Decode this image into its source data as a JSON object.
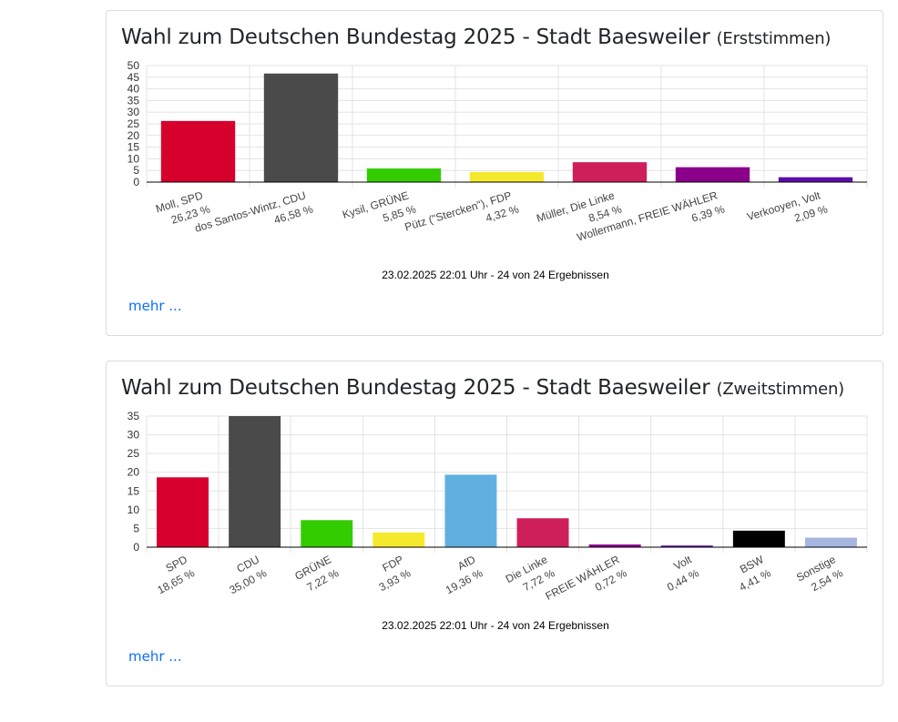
{
  "cards": [
    {
      "title": "Wahl zum Deutschen Bundestag 2025 - Stadt Baesweiler",
      "subtitle": "(Erststimmen)",
      "stand": "23.02.2025 22:01 Uhr - 24 von 24 Ergebnissen",
      "more": "mehr ..."
    },
    {
      "title": "Wahl zum Deutschen Bundestag 2025 - Stadt Baesweiler",
      "subtitle": "(Zweitstimmen)",
      "stand": "23.02.2025 22:01 Uhr - 24 von 24 Ergebnissen",
      "more": "mehr ..."
    }
  ],
  "chart_data": [
    {
      "type": "bar",
      "ylim": [
        0,
        50
      ],
      "yticks": [
        0,
        5,
        10,
        15,
        20,
        25,
        30,
        35,
        40,
        45,
        50
      ],
      "grid": true,
      "legend": "none",
      "categories": [
        "Moll, SPD",
        "dos Santos-Wintz, CDU",
        "Kysil, GRÜNE",
        "Pütz (\"Stercken\"), FDP",
        "Müller, Die Linke",
        "Wollermann, FREIE WÄHLER",
        "Verkooyen, Volt"
      ],
      "values": [
        26.23,
        46.58,
        5.85,
        4.32,
        8.54,
        6.39,
        2.09
      ],
      "value_labels": [
        "26,23 %",
        "46,58 %",
        "5,85 %",
        "4,32 %",
        "8,54 %",
        "6,39 %",
        "2,09 %"
      ],
      "colors": [
        "#d7002c",
        "#4a4a4a",
        "#33cc00",
        "#f5e92e",
        "#cf1f5a",
        "#8a008a",
        "#5c0ea8"
      ]
    },
    {
      "type": "bar",
      "ylim": [
        0,
        35
      ],
      "yticks": [
        0,
        5,
        10,
        15,
        20,
        25,
        30,
        35
      ],
      "grid": true,
      "legend": "none",
      "categories": [
        "SPD",
        "CDU",
        "GRÜNE",
        "FDP",
        "AfD",
        "Die Linke",
        "FREIE WÄHLER",
        "Volt",
        "BSW",
        "Sonstige"
      ],
      "values": [
        18.65,
        35.0,
        7.22,
        3.93,
        19.36,
        7.72,
        0.72,
        0.44,
        4.41,
        2.54
      ],
      "value_labels": [
        "18,65 %",
        "35,00 %",
        "7,22 %",
        "3,93 %",
        "19,36 %",
        "7,72 %",
        "0,72 %",
        "0,44 %",
        "4,41 %",
        "2,54 %"
      ],
      "colors": [
        "#d7002c",
        "#4a4a4a",
        "#33cc00",
        "#f5e92e",
        "#5fb0e0",
        "#cf1f5a",
        "#8a008a",
        "#5c0ea8",
        "#000000",
        "#a5b6e0"
      ]
    }
  ]
}
